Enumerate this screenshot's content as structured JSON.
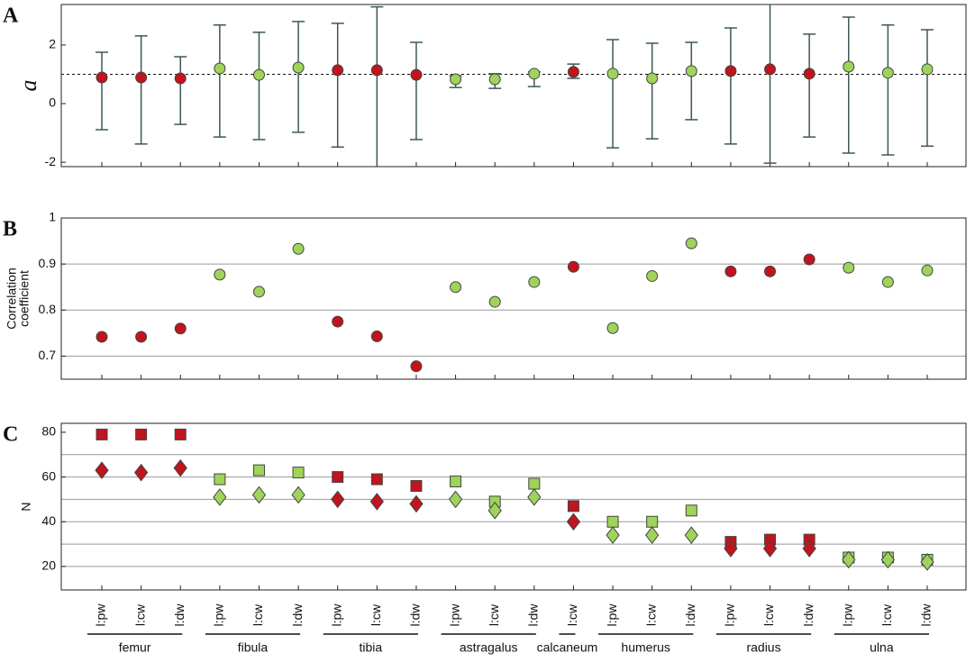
{
  "chart_data": [
    {
      "type": "errorbar",
      "panel": "A",
      "ylabel": "a",
      "ylim": [
        -2.15,
        3.38
      ],
      "yticks": [
        -2,
        0,
        2
      ],
      "reference_line": 1,
      "values": [
        0.89,
        0.89,
        0.86,
        1.2,
        0.98,
        1.23,
        1.14,
        1.14,
        0.98,
        0.83,
        0.83,
        1.02,
        1.08,
        1.02,
        0.86,
        1.11,
        1.11,
        1.17,
        1.02,
        1.26,
        1.05,
        1.17
      ],
      "ci_low": [
        -0.89,
        -1.38,
        -0.71,
        -1.14,
        -1.23,
        -0.98,
        -1.48,
        -2.2,
        -1.23,
        0.55,
        0.52,
        0.58,
        0.86,
        -1.51,
        -1.2,
        -0.55,
        -1.38,
        -2.03,
        -1.14,
        -1.69,
        -1.75,
        -1.45
      ],
      "ci_high": [
        1.75,
        2.31,
        1.6,
        2.68,
        2.43,
        2.8,
        2.74,
        3.3,
        2.09,
        0.95,
        1.02,
        1.08,
        1.35,
        2.18,
        2.06,
        2.09,
        2.58,
        3.4,
        2.37,
        2.95,
        2.68,
        2.52
      ]
    },
    {
      "type": "scatter",
      "panel": "B",
      "ylabel": [
        "Correlation",
        "coefficient"
      ],
      "ylim": [
        0.65,
        1.0
      ],
      "yticks": [
        0.7,
        0.8,
        0.9,
        1
      ],
      "grid_ticks": [
        0.7,
        0.8,
        0.9
      ],
      "values": [
        0.742,
        0.742,
        0.76,
        0.877,
        0.84,
        0.933,
        0.775,
        0.743,
        0.678,
        0.85,
        0.818,
        0.861,
        0.894,
        0.761,
        0.874,
        0.945,
        0.884,
        0.884,
        0.91,
        0.892,
        0.861,
        0.886
      ]
    },
    {
      "type": "scatter",
      "panel": "C",
      "ylabel": "N",
      "ylim": [
        9.5,
        84
      ],
      "yticks": [
        20,
        40,
        60,
        80
      ],
      "grid_ticks": [
        20,
        30,
        40,
        50,
        60,
        70
      ],
      "groups": [
        {
          "name": "femur",
          "color": "#c0141e",
          "categories": [
            "l:pw",
            "l:cw",
            "l:dw"
          ]
        },
        {
          "name": "fibula",
          "color": "#9fd35a",
          "categories": [
            "l:pw",
            "l:cw",
            "l:dw"
          ]
        },
        {
          "name": "tibia",
          "color": "#c0141e",
          "categories": [
            "l:pw",
            "l:cw",
            "l:dw"
          ]
        },
        {
          "name": "astragalus",
          "color": "#9fd35a",
          "categories": [
            "l:pw",
            "l:cw",
            "l:dw"
          ]
        },
        {
          "name": "calcaneum",
          "color": "#c0141e",
          "categories": [
            "l:cw"
          ]
        },
        {
          "name": "humerus",
          "color": "#9fd35a",
          "categories": [
            "l:pw",
            "l:cw",
            "l:dw"
          ]
        },
        {
          "name": "radius",
          "color": "#c0141e",
          "categories": [
            "l:pw",
            "l:cw",
            "l:dw"
          ]
        },
        {
          "name": "ulna",
          "color": "#9fd35a",
          "categories": [
            "l:pw",
            "l:cw",
            "l:dw"
          ]
        }
      ],
      "series": [
        {
          "marker": "square",
          "values": [
            79,
            79,
            79,
            59,
            63,
            62,
            60,
            59,
            56,
            58,
            49,
            57,
            47,
            40,
            40,
            45,
            31,
            32,
            32,
            24,
            24,
            23
          ]
        },
        {
          "marker": "diamond",
          "values": [
            63,
            62,
            64,
            51,
            52,
            52,
            50,
            49,
            48,
            50,
            45,
            51,
            40,
            34,
            34,
            34,
            28,
            28,
            28,
            23,
            23,
            22
          ]
        }
      ]
    }
  ]
}
